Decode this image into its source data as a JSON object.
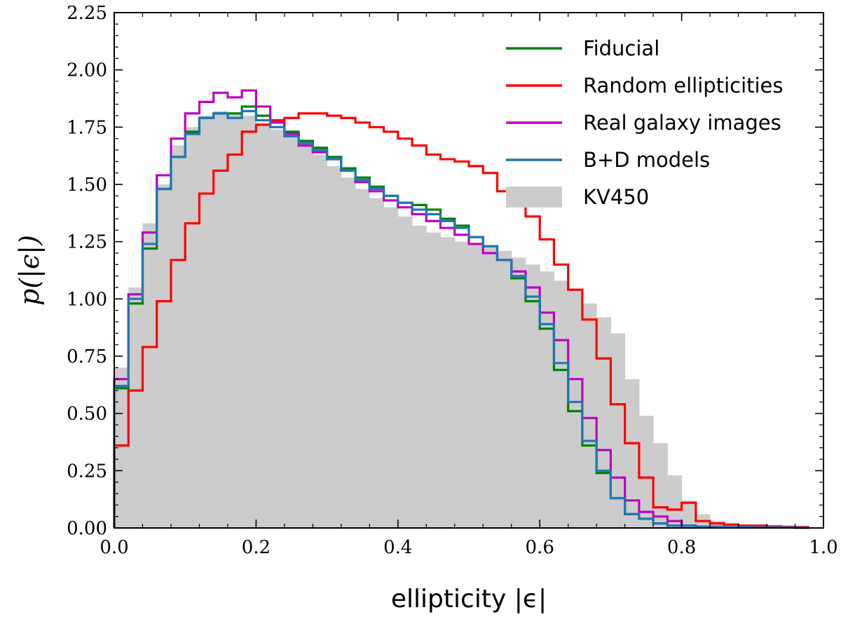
{
  "chart_data": {
    "type": "histogram",
    "xlabel": "ellipticity |ϵ|",
    "ylabel": "p(|ϵ|)",
    "xlim": [
      0.0,
      1.0
    ],
    "ylim": [
      0.0,
      2.25
    ],
    "xticks": [
      0.0,
      0.2,
      0.4,
      0.6,
      0.8,
      1.0
    ],
    "xtick_labels": [
      "0.0",
      "0.2",
      "0.4",
      "0.6",
      "0.8",
      "1.0"
    ],
    "yticks": [
      0.0,
      0.25,
      0.5,
      0.75,
      1.0,
      1.25,
      1.5,
      1.75,
      2.0,
      2.25
    ],
    "ytick_labels": [
      "0.00",
      "0.25",
      "0.50",
      "0.75",
      "1.00",
      "1.25",
      "1.50",
      "1.75",
      "2.00",
      "2.25"
    ],
    "legend_position": "top-right",
    "bin_edges_start": 0.0,
    "bin_width": 0.02,
    "kv450": {
      "name": "KV450",
      "color": "#cccccc",
      "values": [
        0.7,
        1.05,
        1.33,
        1.5,
        1.67,
        1.75,
        1.8,
        1.82,
        1.81,
        1.8,
        1.77,
        1.74,
        1.71,
        1.67,
        1.63,
        1.58,
        1.53,
        1.48,
        1.44,
        1.4,
        1.36,
        1.32,
        1.29,
        1.27,
        1.25,
        1.24,
        1.23,
        1.21,
        1.18,
        1.15,
        1.12,
        1.08,
        1.04,
        0.98,
        0.92,
        0.85,
        0.65,
        0.49,
        0.37,
        0.23,
        0.12,
        0.06,
        0.03,
        0.01,
        0.01,
        0.01,
        0.005,
        0.005,
        0.003
      ]
    },
    "series": [
      {
        "name": "Fiducial",
        "color": "#008000",
        "values": [
          0.61,
          0.98,
          1.22,
          1.48,
          1.62,
          1.73,
          1.79,
          1.81,
          1.81,
          1.84,
          1.8,
          1.77,
          1.73,
          1.69,
          1.66,
          1.62,
          1.57,
          1.53,
          1.49,
          1.45,
          1.42,
          1.41,
          1.39,
          1.35,
          1.32,
          1.27,
          1.23,
          1.17,
          1.09,
          0.99,
          0.87,
          0.69,
          0.51,
          0.36,
          0.24,
          0.13,
          0.06,
          0.04,
          0.02,
          0.01,
          0.01,
          0.005,
          0.005,
          0.003,
          0.003,
          0.002,
          0.002,
          0.002,
          0.001
        ]
      },
      {
        "name": "Random ellipticities",
        "color": "#ff0000",
        "values": [
          0.36,
          0.6,
          0.79,
          0.99,
          1.17,
          1.33,
          1.46,
          1.56,
          1.63,
          1.73,
          1.76,
          1.78,
          1.79,
          1.81,
          1.81,
          1.8,
          1.79,
          1.77,
          1.75,
          1.73,
          1.7,
          1.67,
          1.63,
          1.61,
          1.6,
          1.58,
          1.55,
          1.47,
          1.41,
          1.36,
          1.26,
          1.15,
          1.04,
          0.91,
          0.74,
          0.54,
          0.37,
          0.22,
          0.09,
          0.08,
          0.11,
          0.03,
          0.02,
          0.015,
          0.01,
          0.01,
          0.007,
          0.005,
          0.004
        ]
      },
      {
        "name": "Real galaxy images",
        "color": "#bf00bf",
        "values": [
          0.65,
          1.02,
          1.29,
          1.54,
          1.7,
          1.81,
          1.86,
          1.9,
          1.88,
          1.91,
          1.84,
          1.77,
          1.72,
          1.67,
          1.64,
          1.61,
          1.56,
          1.51,
          1.47,
          1.43,
          1.4,
          1.37,
          1.34,
          1.31,
          1.28,
          1.24,
          1.2,
          1.17,
          1.12,
          1.05,
          0.94,
          0.82,
          0.65,
          0.48,
          0.34,
          0.22,
          0.12,
          0.07,
          0.05,
          0.03,
          0.01,
          0.005,
          0.005,
          0.003,
          0.003,
          0.002,
          0.002,
          0.002,
          0.001
        ]
      },
      {
        "name": "B+D models",
        "color": "#1f77b4",
        "values": [
          0.62,
          1.0,
          1.24,
          1.48,
          1.62,
          1.72,
          1.79,
          1.81,
          1.79,
          1.82,
          1.78,
          1.75,
          1.71,
          1.68,
          1.65,
          1.61,
          1.56,
          1.52,
          1.48,
          1.45,
          1.42,
          1.39,
          1.37,
          1.34,
          1.31,
          1.27,
          1.23,
          1.17,
          1.1,
          1.01,
          0.89,
          0.72,
          0.55,
          0.38,
          0.25,
          0.13,
          0.06,
          0.04,
          0.02,
          0.01,
          0.01,
          0.005,
          0.005,
          0.003,
          0.003,
          0.002,
          0.002,
          0.002,
          0.001
        ]
      }
    ]
  }
}
